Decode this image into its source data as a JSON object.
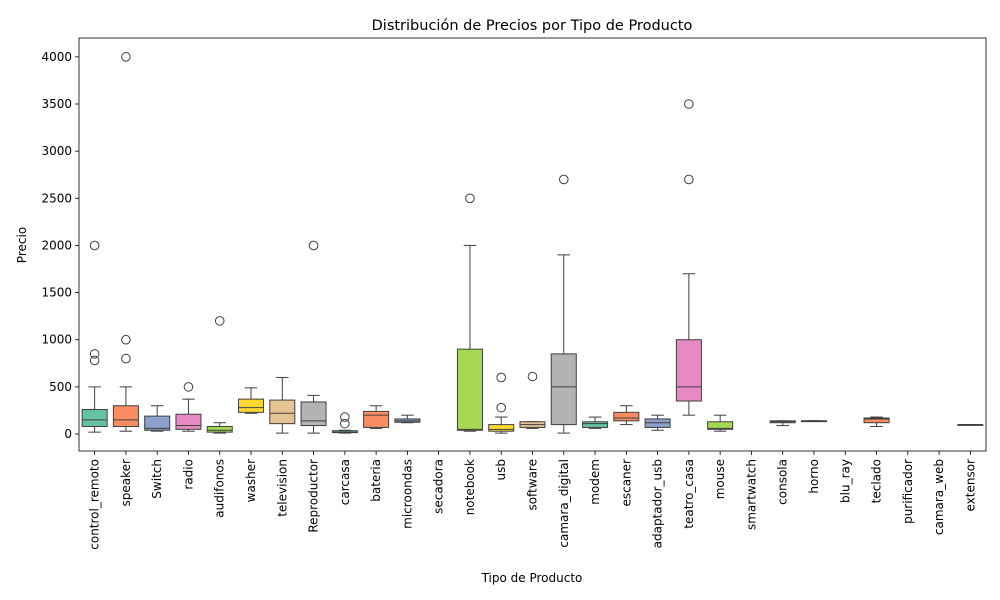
{
  "chart_data": {
    "type": "box",
    "title": "Distribución de Precios por Tipo de Producto",
    "xlabel": "Tipo de Producto",
    "ylabel": "Precio",
    "ylim": [
      -180,
      4200
    ],
    "yticks": [
      0,
      500,
      1000,
      1500,
      2000,
      2500,
      3000,
      3500,
      4000
    ],
    "grid": false,
    "legend": "none",
    "palette": [
      "#66c2a5",
      "#fc8d62",
      "#8da0cb",
      "#e78ac3",
      "#a6d854",
      "#ffd92f",
      "#e5c494",
      "#b3b3b3"
    ],
    "categories": [
      "control_remoto",
      "speaker",
      "Switch",
      "radio",
      "audifonos",
      "washer",
      "television",
      "Reproductor",
      "carcasa",
      "bateria",
      "microondas",
      "secadora",
      "notebook",
      "usb",
      "software",
      "camara_digital",
      "modem",
      "escaner",
      "adaptador_usb",
      "teatro_casa",
      "mouse",
      "smartwatch",
      "consola",
      "horno",
      "blu_ray",
      "teclado",
      "purificador",
      "camara_web",
      "extensor"
    ],
    "boxes": [
      {
        "category": "control_remoto",
        "whislo": 20,
        "q1": 80,
        "med": 150,
        "q3": 260,
        "whishi": 500,
        "fliers": [
          780,
          850,
          2000
        ]
      },
      {
        "category": "speaker",
        "whislo": 30,
        "q1": 80,
        "med": 150,
        "q3": 300,
        "whishi": 500,
        "fliers": [
          800,
          1000,
          4000
        ]
      },
      {
        "category": "Switch",
        "whislo": 30,
        "q1": 40,
        "med": 60,
        "q3": 190,
        "whishi": 300,
        "fliers": []
      },
      {
        "category": "radio",
        "whislo": 30,
        "q1": 50,
        "med": 90,
        "q3": 210,
        "whishi": 370,
        "fliers": [
          500
        ]
      },
      {
        "category": "audifonos",
        "whislo": 10,
        "q1": 20,
        "med": 40,
        "q3": 80,
        "whishi": 120,
        "fliers": [
          1200
        ]
      },
      {
        "category": "washer",
        "whislo": 220,
        "q1": 230,
        "med": 280,
        "q3": 370,
        "whishi": 490,
        "fliers": []
      },
      {
        "category": "television",
        "whislo": 10,
        "q1": 110,
        "med": 220,
        "q3": 360,
        "whishi": 600,
        "fliers": []
      },
      {
        "category": "Reproductor",
        "whislo": 10,
        "q1": 90,
        "med": 140,
        "q3": 340,
        "whishi": 410,
        "fliers": [
          2000
        ]
      },
      {
        "category": "carcasa",
        "whislo": 10,
        "q1": 15,
        "med": 20,
        "q3": 35,
        "whishi": 40,
        "fliers": [
          110,
          180
        ]
      },
      {
        "category": "bateria",
        "whislo": 60,
        "q1": 70,
        "med": 200,
        "q3": 240,
        "whishi": 300,
        "fliers": []
      },
      {
        "category": "microondas",
        "whislo": 120,
        "q1": 125,
        "med": 140,
        "q3": 160,
        "whishi": 200,
        "fliers": []
      },
      {
        "category": "secadora"
      },
      {
        "category": "notebook",
        "whislo": 30,
        "q1": 40,
        "med": 50,
        "q3": 900,
        "whishi": 2000,
        "fliers": [
          2500
        ]
      },
      {
        "category": "usb",
        "whislo": 10,
        "q1": 30,
        "med": 50,
        "q3": 100,
        "whishi": 180,
        "fliers": [
          280,
          600
        ]
      },
      {
        "category": "software",
        "whislo": 60,
        "q1": 70,
        "med": 100,
        "q3": 130,
        "whishi": 130,
        "fliers": [
          610
        ]
      },
      {
        "category": "camara_digital",
        "whislo": 10,
        "q1": 100,
        "med": 500,
        "q3": 850,
        "whishi": 1900,
        "fliers": [
          2700
        ]
      },
      {
        "category": "modem",
        "whislo": 60,
        "q1": 70,
        "med": 110,
        "q3": 130,
        "whishi": 180,
        "fliers": []
      },
      {
        "category": "escaner",
        "whislo": 100,
        "q1": 140,
        "med": 170,
        "q3": 230,
        "whishi": 300,
        "fliers": []
      },
      {
        "category": "adaptador_usb",
        "whislo": 40,
        "q1": 70,
        "med": 120,
        "q3": 160,
        "whishi": 200,
        "fliers": []
      },
      {
        "category": "teatro_casa",
        "whislo": 200,
        "q1": 350,
        "med": 500,
        "q3": 1000,
        "whishi": 1700,
        "fliers": [
          2700,
          3500
        ]
      },
      {
        "category": "mouse",
        "whislo": 30,
        "q1": 50,
        "med": 60,
        "q3": 130,
        "whishi": 200,
        "fliers": []
      },
      {
        "category": "smartwatch"
      },
      {
        "category": "consola",
        "whislo": 90,
        "q1": 120,
        "med": 130,
        "q3": 140,
        "whishi": 140,
        "fliers": []
      },
      {
        "category": "horno",
        "whislo": 140,
        "q1": 140,
        "med": 140,
        "q3": 140,
        "whishi": 140,
        "fliers": []
      },
      {
        "category": "blu_ray"
      },
      {
        "category": "teclado",
        "whislo": 80,
        "q1": 120,
        "med": 160,
        "q3": 170,
        "whishi": 180,
        "fliers": []
      },
      {
        "category": "purificador"
      },
      {
        "category": "camara_web"
      },
      {
        "category": "extensor",
        "whislo": 100,
        "q1": 100,
        "med": 100,
        "q3": 100,
        "whishi": 100,
        "fliers": []
      }
    ]
  }
}
